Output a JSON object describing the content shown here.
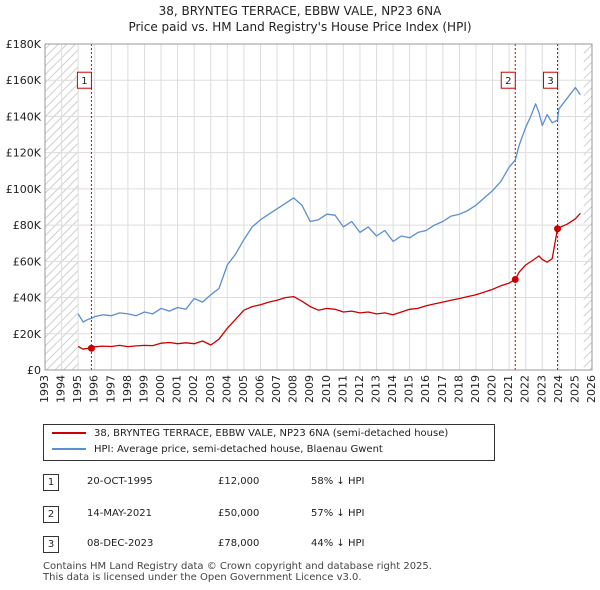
{
  "chart_data": {
    "type": "line",
    "title": "38, BRYNTEG TERRACE, EBBW VALE, NP23 6NA",
    "subtitle": "Price paid vs. HM Land Registry's House Price Index (HPI)",
    "xlabel": "",
    "ylabel": "",
    "xlim": [
      1993,
      2026
    ],
    "ylim": [
      0,
      180000
    ],
    "x_ticks": [
      "1993",
      "1994",
      "1995",
      "1996",
      "1997",
      "1998",
      "1999",
      "2000",
      "2001",
      "2002",
      "2003",
      "2004",
      "2005",
      "2006",
      "2007",
      "2008",
      "2009",
      "2010",
      "2011",
      "2012",
      "2013",
      "2014",
      "2015",
      "2016",
      "2017",
      "2018",
      "2019",
      "2020",
      "2021",
      "2022",
      "2023",
      "2024",
      "2025",
      "2026"
    ],
    "y_ticks": [
      {
        "value": 0,
        "label": "£0"
      },
      {
        "value": 20000,
        "label": "£20K"
      },
      {
        "value": 40000,
        "label": "£40K"
      },
      {
        "value": 60000,
        "label": "£60K"
      },
      {
        "value": 80000,
        "label": "£80K"
      },
      {
        "value": 100000,
        "label": "£100K"
      },
      {
        "value": 120000,
        "label": "£120K"
      },
      {
        "value": 140000,
        "label": "£140K"
      },
      {
        "value": 160000,
        "label": "£160K"
      },
      {
        "value": 180000,
        "label": "£180K"
      }
    ],
    "grid": true,
    "hatched_regions": [
      [
        1993,
        1995.0
      ],
      [
        2025.5,
        2026
      ]
    ],
    "series": [
      {
        "name": "38, BRYNTEG TERRACE, EBBW VALE, NP23 6NA (semi-detached house)",
        "color": "#cc0000",
        "x": [
          1995.0,
          1995.3,
          1995.6,
          1995.8,
          1996.0,
          1996.5,
          1997.0,
          1997.5,
          1998.0,
          1998.5,
          1999.0,
          1999.5,
          2000.0,
          2000.5,
          2001.0,
          2001.5,
          2002.0,
          2002.5,
          2003.0,
          2003.5,
          2004.0,
          2004.5,
          2005.0,
          2005.5,
          2006.0,
          2006.5,
          2007.0,
          2007.5,
          2008.0,
          2008.5,
          2009.0,
          2009.5,
          2010.0,
          2010.5,
          2011.0,
          2011.5,
          2012.0,
          2012.5,
          2013.0,
          2013.5,
          2014.0,
          2014.5,
          2015.0,
          2015.5,
          2016.0,
          2016.5,
          2017.0,
          2017.5,
          2018.0,
          2018.5,
          2019.0,
          2019.5,
          2020.0,
          2020.5,
          2021.0,
          2021.37,
          2021.6,
          2022.0,
          2022.5,
          2022.8,
          2023.0,
          2023.3,
          2023.6,
          2023.92,
          2024.0,
          2024.5,
          2025.0,
          2025.3
        ],
        "values": [
          13000,
          11500,
          12000,
          12000,
          12800,
          13200,
          13000,
          13600,
          12900,
          13300,
          13600,
          13500,
          14800,
          15200,
          14500,
          15000,
          14500,
          16000,
          13800,
          17000,
          23000,
          28000,
          33000,
          35000,
          36000,
          37500,
          38500,
          40000,
          40500,
          38000,
          35000,
          33000,
          34000,
          33500,
          32000,
          32500,
          31500,
          32000,
          31000,
          31500,
          30500,
          32000,
          33500,
          34000,
          35500,
          36500,
          37500,
          38500,
          39500,
          40500,
          41500,
          43000,
          44500,
          46500,
          48000,
          50000,
          54000,
          58000,
          61000,
          63000,
          61000,
          59500,
          61500,
          78000,
          78500,
          80500,
          83500,
          86500
        ]
      },
      {
        "name": "HPI: Average price, semi-detached house, Blaenau Gwent",
        "color": "#5b8fd0",
        "x": [
          1995.0,
          1995.3,
          1995.6,
          1995.8,
          1996.0,
          1996.5,
          1997.0,
          1997.5,
          1998.0,
          1998.5,
          1999.0,
          1999.5,
          2000.0,
          2000.5,
          2001.0,
          2001.5,
          2002.0,
          2002.5,
          2003.0,
          2003.5,
          2004.0,
          2004.5,
          2005.0,
          2005.5,
          2006.0,
          2006.5,
          2007.0,
          2007.5,
          2008.0,
          2008.5,
          2009.0,
          2009.5,
          2010.0,
          2010.5,
          2011.0,
          2011.5,
          2012.0,
          2012.5,
          2013.0,
          2013.5,
          2014.0,
          2014.5,
          2015.0,
          2015.5,
          2016.0,
          2016.5,
          2017.0,
          2017.5,
          2018.0,
          2018.5,
          2019.0,
          2019.5,
          2020.0,
          2020.5,
          2021.0,
          2021.37,
          2021.6,
          2022.0,
          2022.3,
          2022.6,
          2022.8,
          2023.0,
          2023.3,
          2023.6,
          2023.92,
          2024.0,
          2024.5,
          2025.0,
          2025.3
        ],
        "values": [
          31000,
          26500,
          28000,
          28500,
          29500,
          30500,
          30000,
          31500,
          31000,
          30000,
          32000,
          31000,
          34000,
          32500,
          34500,
          33500,
          39500,
          37500,
          41500,
          45000,
          58000,
          64000,
          72000,
          79000,
          83000,
          86000,
          89000,
          92000,
          95000,
          91000,
          82000,
          83000,
          86000,
          85500,
          79000,
          82000,
          76000,
          79000,
          74000,
          77000,
          71000,
          74000,
          73000,
          76000,
          77000,
          80000,
          82000,
          85000,
          86000,
          88000,
          91000,
          95000,
          99000,
          104000,
          112000,
          116000,
          124000,
          134000,
          140000,
          147000,
          142000,
          135000,
          141000,
          136500,
          138000,
          144000,
          150000,
          156000,
          152000
        ]
      }
    ],
    "markers": [
      {
        "label": "1",
        "x": 1995.8,
        "value": 12000,
        "box_value": 160000
      },
      {
        "label": "2",
        "x": 2021.37,
        "value": 50000,
        "box_value": 160000
      },
      {
        "label": "3",
        "x": 2023.92,
        "value": 78000,
        "box_value": 160000
      }
    ]
  },
  "legend": {
    "items": [
      {
        "label": "38, BRYNTEG TERRACE, EBBW VALE, NP23 6NA (semi-detached house)",
        "color": "#cc0000"
      },
      {
        "label": "HPI: Average price, semi-detached house, Blaenau Gwent",
        "color": "#5b8fd0"
      }
    ]
  },
  "sales": [
    {
      "num": "1",
      "date": "20-OCT-1995",
      "price": "£12,000",
      "hpi": "58% ↓ HPI"
    },
    {
      "num": "2",
      "date": "14-MAY-2021",
      "price": "£50,000",
      "hpi": "57% ↓ HPI"
    },
    {
      "num": "3",
      "date": "08-DEC-2023",
      "price": "£78,000",
      "hpi": "44% ↓ HPI"
    }
  ],
  "footer": {
    "line1": "Contains HM Land Registry data © Crown copyright and database right 2025.",
    "line2": "This data is licensed under the Open Government Licence v3.0."
  }
}
